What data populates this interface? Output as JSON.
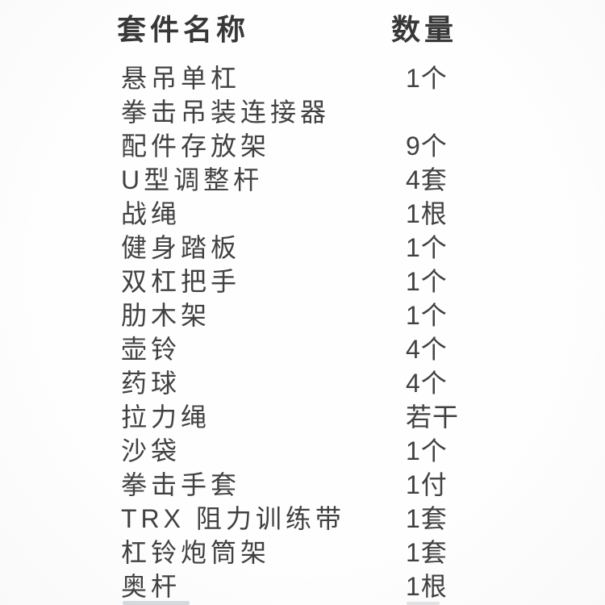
{
  "page": {
    "background_color": "#fdfdfd",
    "text_color": "#414141",
    "header_text_color": "#383838"
  },
  "table": {
    "headers": {
      "name": "套件名称",
      "qty": "数量"
    },
    "rows": [
      {
        "name": "悬吊单杠",
        "qty": "1个"
      },
      {
        "name": "拳击吊装连接器",
        "qty": ""
      },
      {
        "name": "配件存放架",
        "qty": "9个"
      },
      {
        "name": "U型调整杆",
        "qty": "4套"
      },
      {
        "name": "战绳",
        "qty": "1根"
      },
      {
        "name": "健身踏板",
        "qty": "1个"
      },
      {
        "name": "双杠把手",
        "qty": "1个"
      },
      {
        "name": "肋木架",
        "qty": "1个"
      },
      {
        "name": "壶铃",
        "qty": "4个"
      },
      {
        "name": "药球",
        "qty": "4个"
      },
      {
        "name": "拉力绳",
        "qty": "若干"
      },
      {
        "name": "沙袋",
        "qty": "1个"
      },
      {
        "name": "拳击手套",
        "qty": "1付"
      },
      {
        "name": "TRX 阻力训练带",
        "qty": "1套"
      },
      {
        "name": "杠铃炮筒架",
        "qty": "1套"
      },
      {
        "name": "奥杆",
        "qty": "1根"
      }
    ]
  }
}
